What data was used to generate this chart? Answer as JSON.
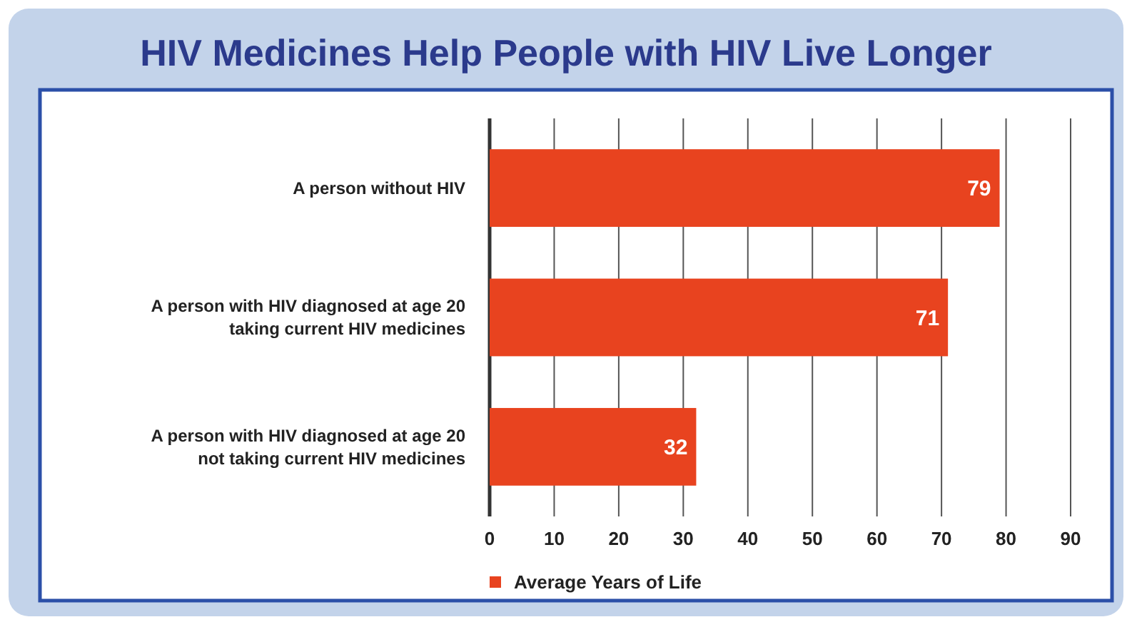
{
  "chart_data": {
    "type": "bar",
    "orientation": "horizontal",
    "title": "HIV Medicines Help People with HIV Live Longer",
    "categories": [
      "A person without HIV",
      "A person with HIV diagnosed at age 20 taking current HIV medicines",
      "A person with HIV diagnosed at age 20 not taking current HIV medicines"
    ],
    "series": [
      {
        "name": "Average Years of Life",
        "color": "#e8431f",
        "values": [
          79,
          71,
          32
        ]
      }
    ],
    "xlim": [
      0,
      90
    ],
    "xticks": [
      0,
      10,
      20,
      30,
      40,
      50,
      60,
      70,
      80,
      90
    ],
    "grid": "x",
    "data_labels": true,
    "legend": "bottom left"
  }
}
